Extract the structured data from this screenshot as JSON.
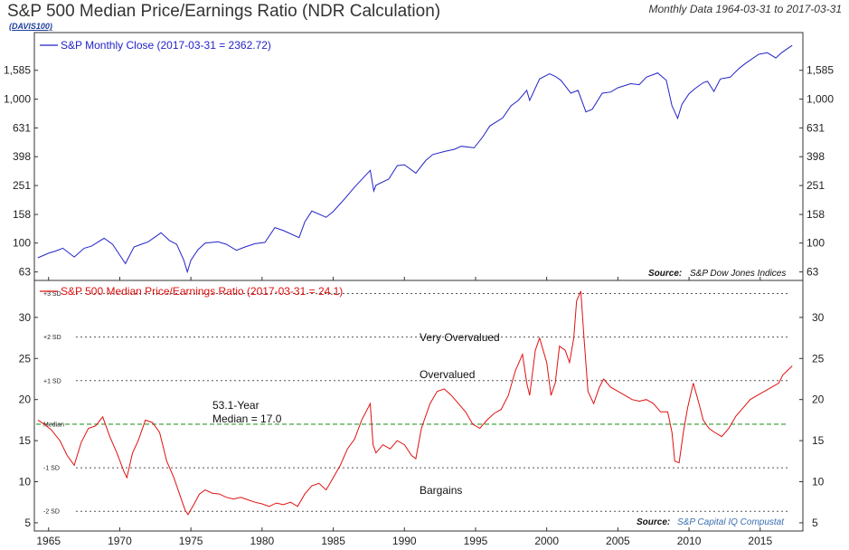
{
  "header": {
    "title": "S&P 500 Median Price/Earnings Ratio (NDR Calculation)",
    "tag": "(DAVIS100)",
    "subtitle": "Monthly Data 1964-03-31 to 2017-03-31"
  },
  "colors": {
    "index_line": "#2323c8",
    "pe_line": "#e01010",
    "median_line": "#2f9a2f",
    "sd_line": "#555555"
  },
  "chart_data": [
    {
      "type": "line",
      "panel": "top",
      "scale": "log",
      "legend": "S&P Monthly Close (2017-03-31 = 2362.72)",
      "yticks": [
        63,
        100,
        158,
        251,
        398,
        631,
        1000,
        1585
      ],
      "ytick_labels": [
        "63",
        "100",
        "158",
        "251",
        "398",
        "631",
        "1,000",
        "1,585"
      ],
      "ylim": [
        55,
        2900
      ],
      "xlim": [
        1964.0,
        2018.0
      ],
      "series": [
        {
          "name": "S&P Monthly Close",
          "x": [
            1964.25,
            1965.0,
            1965.5,
            1966.0,
            1966.8,
            1967.5,
            1968.0,
            1968.9,
            1969.5,
            1970.4,
            1971.0,
            1971.5,
            1972.0,
            1972.9,
            1973.5,
            1974.0,
            1974.5,
            1974.75,
            1975.0,
            1975.5,
            1976.0,
            1976.9,
            1977.5,
            1978.2,
            1978.8,
            1979.5,
            1980.2,
            1980.9,
            1981.5,
            1982.6,
            1983.0,
            1983.5,
            1984.5,
            1985.0,
            1985.9,
            1986.5,
            1987.6,
            1987.85,
            1988.0,
            1988.9,
            1989.5,
            1990.0,
            1990.8,
            1991.5,
            1992.0,
            1992.9,
            1993.5,
            1994.0,
            1994.9,
            1995.5,
            1996.0,
            1996.9,
            1997.5,
            1998.0,
            1998.6,
            1998.8,
            1999.5,
            2000.2,
            2000.6,
            2001.0,
            2001.7,
            2002.2,
            2002.75,
            2003.2,
            2003.9,
            2004.5,
            2005.0,
            2005.9,
            2006.5,
            2007.0,
            2007.8,
            2008.4,
            2008.8,
            2009.2,
            2009.5,
            2010.0,
            2010.4,
            2011.0,
            2011.3,
            2011.75,
            2012.2,
            2012.9,
            2013.5,
            2014.0,
            2014.9,
            2015.5,
            2016.1,
            2016.5,
            2017.0,
            2017.25
          ],
          "values": [
            79,
            85,
            88,
            92,
            80,
            92,
            95,
            108,
            98,
            72,
            94,
            98,
            102,
            118,
            104,
            98,
            76,
            63,
            76,
            90,
            100,
            102,
            98,
            89,
            94,
            99,
            101,
            128,
            122,
            109,
            140,
            167,
            151,
            166,
            208,
            245,
            320,
            230,
            252,
            278,
            345,
            350,
            306,
            375,
            412,
            435,
            448,
            470,
            459,
            545,
            650,
            740,
            900,
            980,
            1150,
            980,
            1380,
            1500,
            1440,
            1350,
            1100,
            1150,
            815,
            850,
            1100,
            1120,
            1200,
            1280,
            1260,
            1420,
            1520,
            1350,
            900,
            735,
            920,
            1090,
            1180,
            1300,
            1330,
            1130,
            1380,
            1420,
            1630,
            1780,
            2050,
            2100,
            1930,
            2100,
            2275,
            2362.72
          ]
        }
      ],
      "source_label": "Source:",
      "source": "S&P Dow Jones Indices"
    },
    {
      "type": "line",
      "panel": "bottom",
      "scale": "linear",
      "legend": "S&P 500 Median Price/Earnings Ratio (2017-03-31 = 24.1)",
      "yticks": [
        5,
        10,
        15,
        20,
        25,
        30
      ],
      "ylim": [
        4,
        34.5
      ],
      "xlim": [
        1964.0,
        2018.0
      ],
      "xticks": [
        1965,
        1970,
        1975,
        1980,
        1985,
        1990,
        1995,
        2000,
        2005,
        2010,
        2015
      ],
      "series": [
        {
          "name": "S&P 500 Median P/E",
          "x": [
            1964.25,
            1964.7,
            1965.2,
            1965.8,
            1966.3,
            1966.8,
            1967.3,
            1967.8,
            1968.3,
            1968.8,
            1969.3,
            1969.8,
            1970.3,
            1970.5,
            1970.9,
            1971.3,
            1971.8,
            1972.3,
            1972.8,
            1973.3,
            1973.8,
            1974.3,
            1974.6,
            1974.8,
            1975.2,
            1975.6,
            1976.0,
            1976.5,
            1977.0,
            1977.5,
            1978.0,
            1978.5,
            1979.0,
            1979.5,
            1980.0,
            1980.5,
            1981.0,
            1981.5,
            1982.0,
            1982.5,
            1983.0,
            1983.5,
            1984.0,
            1984.5,
            1985.0,
            1985.5,
            1986.0,
            1986.5,
            1987.0,
            1987.6,
            1987.8,
            1988.0,
            1988.5,
            1989.0,
            1989.5,
            1990.0,
            1990.5,
            1990.8,
            1991.2,
            1991.8,
            1992.3,
            1992.8,
            1993.3,
            1993.8,
            1994.3,
            1994.8,
            1995.3,
            1995.8,
            1996.3,
            1996.8,
            1997.3,
            1997.8,
            1998.3,
            1998.6,
            1998.8,
            1999.2,
            1999.5,
            2000.0,
            2000.3,
            2000.6,
            2000.9,
            2001.3,
            2001.6,
            2001.9,
            2002.1,
            2002.4,
            2002.6,
            2002.9,
            2003.3,
            2003.7,
            2004.0,
            2004.5,
            2005.0,
            2005.5,
            2006.0,
            2006.5,
            2007.0,
            2007.5,
            2008.0,
            2008.5,
            2008.8,
            2009.0,
            2009.3,
            2009.6,
            2009.9,
            2010.3,
            2010.7,
            2011.0,
            2011.4,
            2011.8,
            2012.3,
            2012.8,
            2013.3,
            2013.8,
            2014.3,
            2014.8,
            2015.3,
            2015.8,
            2016.3,
            2016.6,
            2016.9,
            2017.25
          ],
          "values": [
            17.5,
            17.0,
            16.3,
            15.0,
            13.2,
            12.0,
            14.8,
            16.5,
            16.8,
            17.9,
            15.5,
            13.5,
            11.2,
            10.5,
            13.5,
            15.0,
            17.5,
            17.2,
            16.0,
            12.5,
            10.5,
            8.0,
            6.5,
            6.0,
            7.2,
            8.5,
            9.0,
            8.6,
            8.5,
            8.1,
            7.9,
            8.1,
            7.8,
            7.5,
            7.3,
            7.0,
            7.4,
            7.2,
            7.5,
            7.0,
            8.5,
            9.5,
            9.8,
            9.0,
            10.5,
            12.0,
            14.0,
            15.2,
            17.5,
            19.5,
            14.5,
            13.5,
            14.5,
            14.0,
            15.0,
            14.5,
            13.2,
            12.8,
            16.5,
            19.5,
            21.0,
            21.3,
            20.5,
            19.5,
            18.5,
            17.0,
            16.5,
            17.5,
            18.3,
            18.8,
            20.5,
            23.5,
            25.5,
            22.0,
            20.5,
            26.0,
            27.5,
            24.5,
            20.5,
            22.0,
            26.5,
            26.0,
            24.5,
            27.5,
            32.0,
            33.2,
            28.0,
            21.0,
            19.5,
            21.5,
            22.5,
            21.5,
            21.0,
            20.5,
            20.0,
            19.8,
            20.0,
            19.5,
            18.5,
            18.5,
            16.0,
            12.5,
            12.3,
            16.0,
            19.0,
            22.0,
            19.5,
            17.5,
            16.5,
            16.0,
            15.5,
            16.5,
            18.0,
            19.0,
            20.0,
            20.5,
            21.0,
            21.5,
            22.0,
            23.0,
            23.5,
            24.1
          ]
        }
      ],
      "sd_lines": [
        {
          "label": "+3 SD",
          "value": 32.9
        },
        {
          "label": "+2 SD",
          "value": 27.6
        },
        {
          "label": "+1 SD",
          "value": 22.3
        },
        {
          "label": "Median",
          "value": 17.0
        },
        {
          "label": "-1 SD",
          "value": 11.7
        },
        {
          "label": "-2 SD",
          "value": 6.4
        }
      ],
      "annotations": {
        "very_overvalued": "Very Overvalued",
        "overvalued": "Overvalued",
        "median_line1": "53.1-Year",
        "median_line2": "Median = 17.0",
        "bargains": "Bargains"
      },
      "source_label": "Source:",
      "source": "S&P Capital IQ Compustat"
    }
  ]
}
